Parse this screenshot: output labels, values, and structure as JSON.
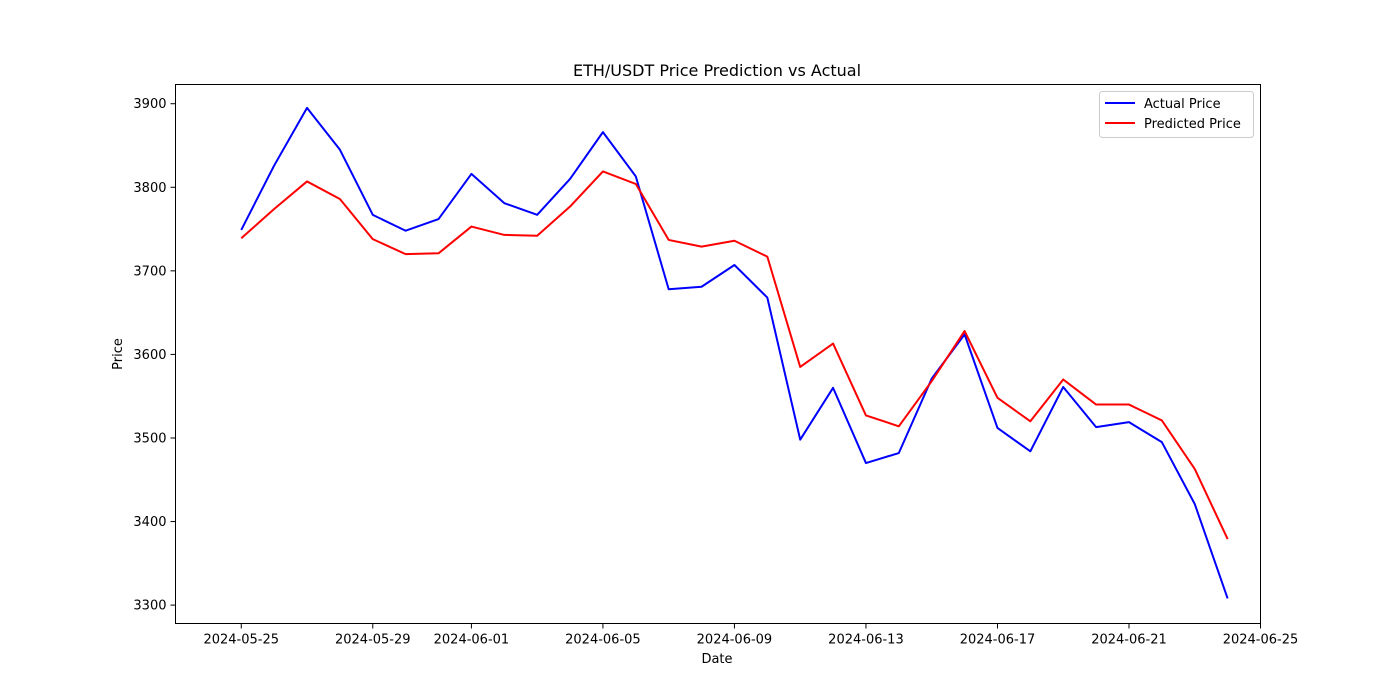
{
  "chart_data": {
    "type": "line",
    "title": "ETH/USDT Price Prediction vs Actual",
    "xlabel": "Date",
    "ylabel": "Price",
    "x_start": "2024-05-25",
    "x": [
      "2024-05-25",
      "2024-05-26",
      "2024-05-27",
      "2024-05-28",
      "2024-05-29",
      "2024-05-30",
      "2024-05-31",
      "2024-06-01",
      "2024-06-02",
      "2024-06-03",
      "2024-06-04",
      "2024-06-05",
      "2024-06-06",
      "2024-06-07",
      "2024-06-08",
      "2024-06-09",
      "2024-06-10",
      "2024-06-11",
      "2024-06-12",
      "2024-06-13",
      "2024-06-14",
      "2024-06-15",
      "2024-06-16",
      "2024-06-17",
      "2024-06-18",
      "2024-06-19",
      "2024-06-20",
      "2024-06-21",
      "2024-06-22",
      "2024-06-23",
      "2024-06-24"
    ],
    "series": [
      {
        "name": "Actual Price",
        "color": "#0000ff",
        "values": [
          3749,
          3826,
          3895,
          3845,
          3767,
          3748,
          3762,
          3816,
          3781,
          3767,
          3810,
          3866,
          3813,
          3678,
          3681,
          3707,
          3668,
          3498,
          3560,
          3470,
          3482,
          3571,
          3624,
          3512,
          3484,
          3561,
          3513,
          3519,
          3495,
          3421,
          3308
        ]
      },
      {
        "name": "Predicted Price",
        "color": "#ff0000",
        "values": [
          3739,
          3774,
          3807,
          3786,
          3738,
          3720,
          3721,
          3753,
          3743,
          3742,
          3777,
          3819,
          3804,
          3737,
          3729,
          3736,
          3717,
          3585,
          3613,
          3527,
          3514,
          3568,
          3628,
          3548,
          3520,
          3570,
          3540,
          3540,
          3521,
          3463,
          3379
        ]
      }
    ],
    "xticks": [
      "2024-05-25",
      "2024-05-29",
      "2024-06-01",
      "2024-06-05",
      "2024-06-09",
      "2024-06-13",
      "2024-06-17",
      "2024-06-21",
      "2024-06-25"
    ],
    "yticks": [
      3300,
      3400,
      3500,
      3600,
      3700,
      3800,
      3900
    ],
    "xlim": [
      "2024-05-23",
      "2024-06-25"
    ],
    "ylim": [
      3278,
      3923
    ],
    "legend_position": "upper right",
    "grid": false
  }
}
